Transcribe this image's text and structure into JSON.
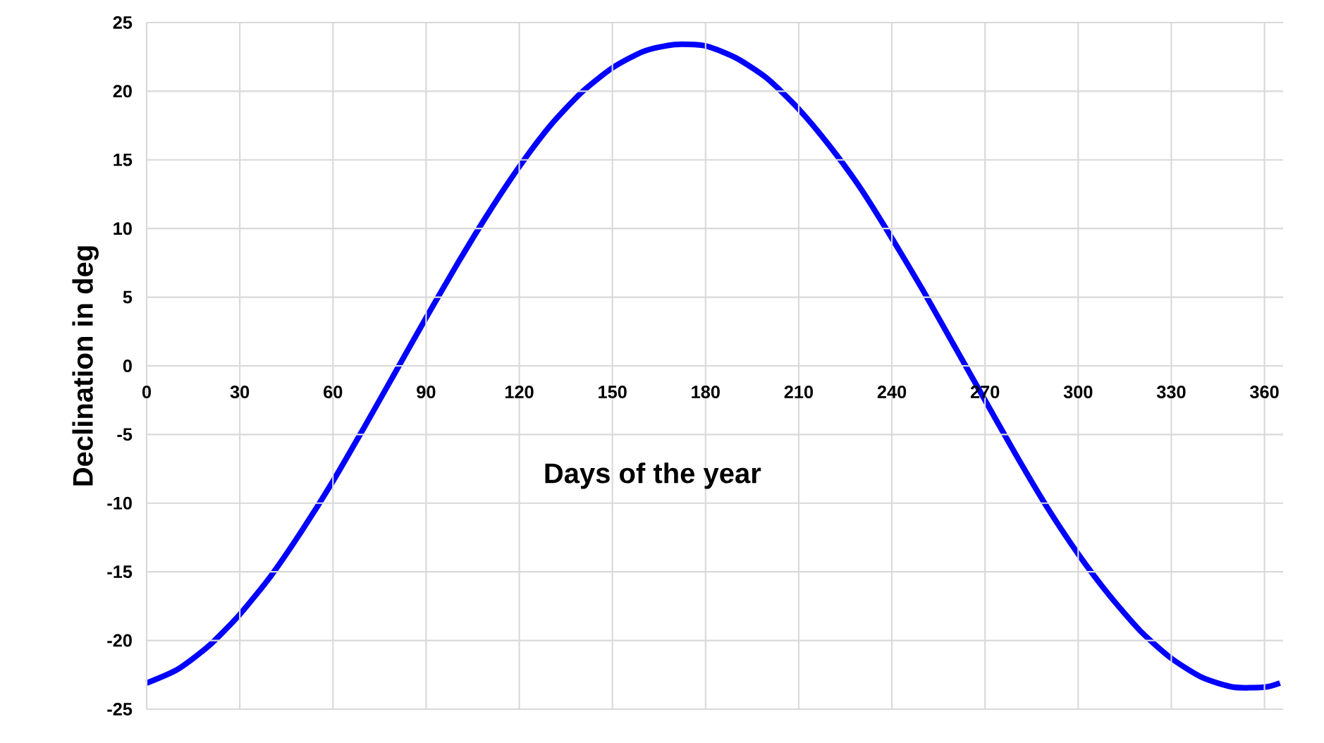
{
  "chart_data": {
    "type": "line",
    "xlabel": "Days of the year",
    "ylabel": "Declination in deg",
    "x": [
      0,
      10,
      20,
      30,
      40,
      50,
      60,
      70,
      80,
      90,
      100,
      110,
      120,
      130,
      140,
      150,
      160,
      170,
      180,
      190,
      200,
      210,
      220,
      230,
      240,
      250,
      260,
      270,
      280,
      290,
      300,
      310,
      320,
      330,
      340,
      350,
      360,
      365
    ],
    "series": [
      {
        "color": "#0000ff",
        "values": [
          -23.1,
          -22.1,
          -20.4,
          -18.1,
          -15.3,
          -12.0,
          -8.4,
          -4.5,
          -0.5,
          3.5,
          7.4,
          11.1,
          14.5,
          17.5,
          19.9,
          21.7,
          22.9,
          23.4,
          23.3,
          22.4,
          20.9,
          18.7,
          16.0,
          12.9,
          9.3,
          5.5,
          1.5,
          -2.5,
          -6.5,
          -10.3,
          -13.7,
          -16.7,
          -19.3,
          -21.3,
          -22.7,
          -23.4,
          -23.4,
          -23.1
        ]
      }
    ],
    "xlim": [
      0,
      366
    ],
    "ylim": [
      -25,
      25
    ],
    "xticks": [
      0,
      30,
      60,
      90,
      120,
      150,
      180,
      210,
      240,
      270,
      300,
      330,
      360
    ],
    "yticks": [
      -25,
      -20,
      -15,
      -10,
      -5,
      0,
      5,
      10,
      15,
      20,
      25
    ],
    "grid": true,
    "marker": "none",
    "line_style": "solid"
  }
}
